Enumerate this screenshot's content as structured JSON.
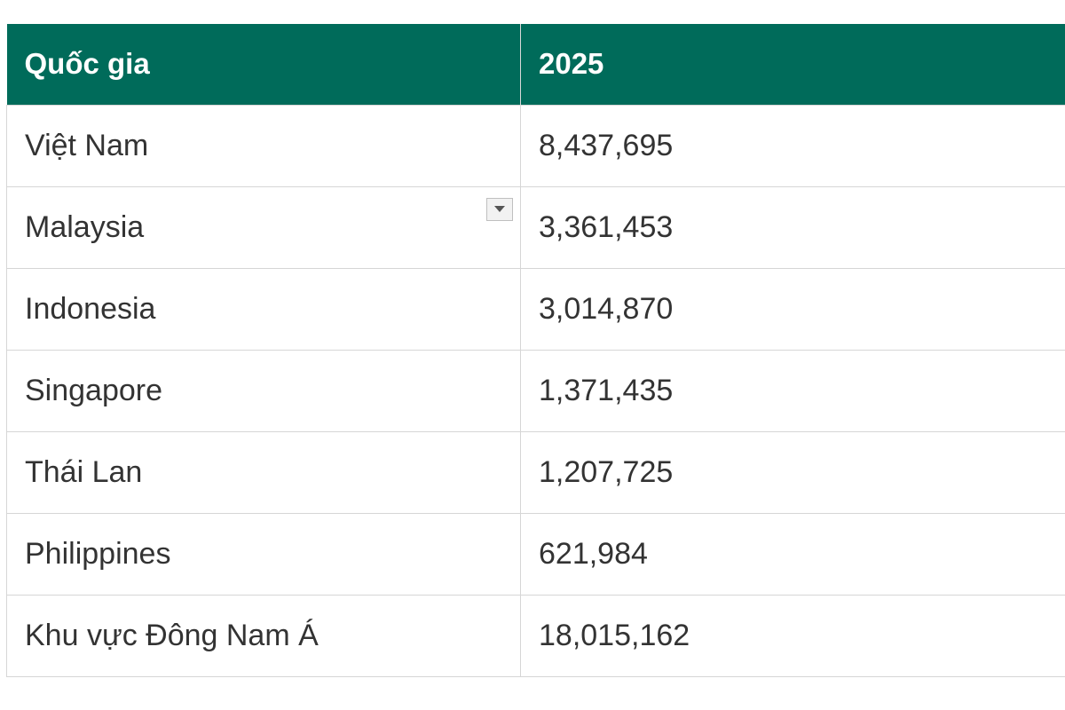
{
  "table": {
    "headers": [
      "Quốc gia",
      "2025"
    ],
    "rows": [
      {
        "country": "Việt Nam",
        "value": "8,437,695"
      },
      {
        "country": "Malaysia",
        "value": "3,361,453"
      },
      {
        "country": "Indonesia",
        "value": "3,014,870"
      },
      {
        "country": "Singapore",
        "value": "1,371,435"
      },
      {
        "country": "Thái Lan",
        "value": "1,207,725"
      },
      {
        "country": "Philippines",
        "value": "621,984"
      },
      {
        "country": "Khu vực Đông Nam Á",
        "value": "18,015,162"
      }
    ]
  },
  "colors": {
    "header_bg": "#006b5a",
    "header_text": "#ffffff",
    "cell_text": "#333333",
    "border": "#d6d6d6"
  },
  "icons": {
    "dropdown": "chevron-down-icon"
  }
}
